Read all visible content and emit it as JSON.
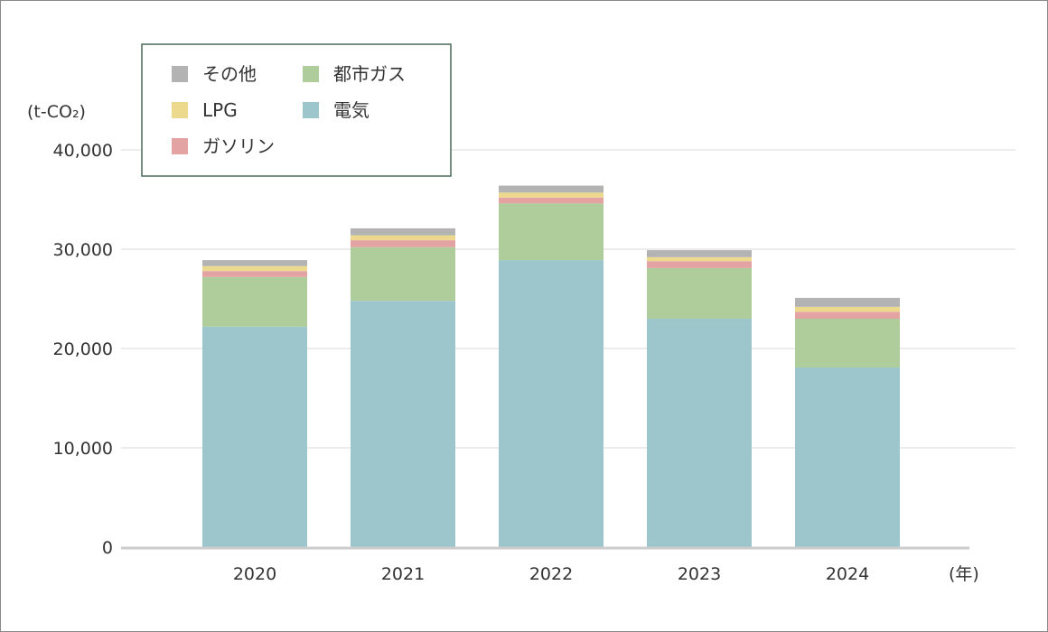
{
  "chart_data": {
    "type": "bar",
    "stacked": true,
    "categories": [
      "2020",
      "2021",
      "2022",
      "2023",
      "2024"
    ],
    "series": [
      {
        "name": "電気",
        "color": "#9cc6cc",
        "values": [
          22200,
          24800,
          28900,
          23000,
          18100
        ]
      },
      {
        "name": "都市ガス",
        "color": "#aecd9a",
        "values": [
          5000,
          5400,
          5700,
          5100,
          4900
        ]
      },
      {
        "name": "ガソリン",
        "color": "#e4a3a3",
        "values": [
          600,
          700,
          600,
          700,
          700
        ]
      },
      {
        "name": "LPG",
        "color": "#ecd98e",
        "values": [
          500,
          500,
          500,
          400,
          500
        ]
      },
      {
        "name": "その他",
        "color": "#b3b3b3",
        "values": [
          600,
          700,
          700,
          700,
          900
        ]
      }
    ],
    "legend_order": [
      "その他",
      "都市ガス",
      "LPG",
      "電気",
      "ガソリン"
    ],
    "ylabel": "(t-CO₂)",
    "xlabel": "(年)",
    "yticks": [
      "0",
      "10,000",
      "20,000",
      "30,000",
      "40,000"
    ],
    "ylim": [
      0,
      40000
    ],
    "grid": true,
    "legend_position": "top-left"
  }
}
